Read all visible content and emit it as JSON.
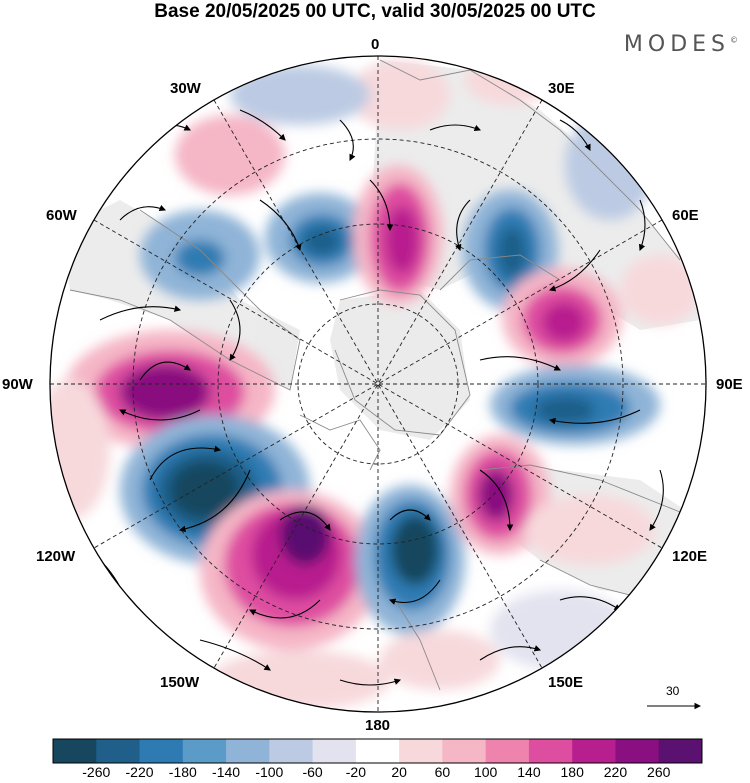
{
  "header": {
    "title": "Base 20/05/2025 00 UTC, valid 30/05/2025 00 UTC",
    "brand": "MODES",
    "brand_mark": "©"
  },
  "map_labels": {
    "top": "0",
    "bottom": "180",
    "left": "90W",
    "right": "90E",
    "w30": "30W",
    "e30": "30E",
    "w60": "60W",
    "e60": "60E",
    "w120": "120W",
    "e120": "120E",
    "w150": "150W",
    "e150": "150E"
  },
  "vector_reference": {
    "value": "30"
  },
  "colorbar": {
    "ticks": [
      "-260",
      "-220",
      "-180",
      "-140",
      "-100",
      "-60",
      "-20",
      "20",
      "60",
      "100",
      "140",
      "180",
      "220",
      "260"
    ],
    "colors": [
      "#16475f",
      "#1f5f8a",
      "#2e7bb3",
      "#5b9bc8",
      "#8fb4d7",
      "#bccbe3",
      "#e3e3f0",
      "#ffffff",
      "#f7d9dc",
      "#f5b6c6",
      "#ee83ae",
      "#de4ea0",
      "#b81f8e",
      "#8a0f80",
      "#5a1170"
    ]
  },
  "anomaly_centers": [
    {
      "name": "neg-atlantic",
      "sign": "negative"
    },
    {
      "name": "pos-siberia",
      "sign": "positive"
    }
  ],
  "colors": {
    "coast": "#8a8a8a",
    "grid": "#222222",
    "land_tint": "#d8d8d8"
  }
}
